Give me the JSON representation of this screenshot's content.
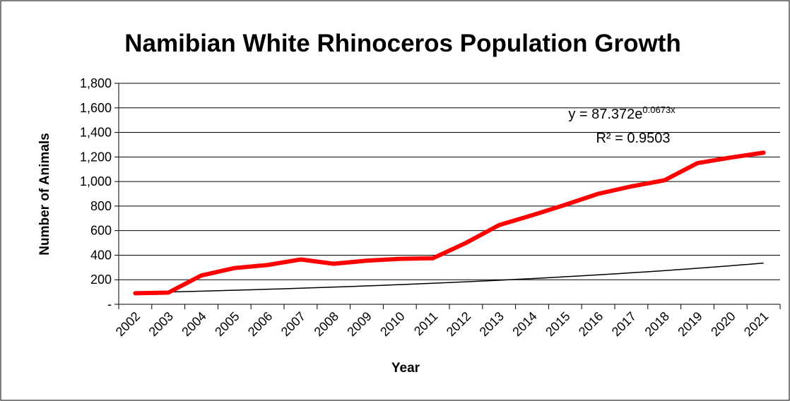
{
  "chart_data": {
    "type": "line",
    "title": "Namibian White Rhinoceros Population Growth",
    "xlabel": "Year",
    "ylabel": "Number of Animals",
    "categories": [
      "2002",
      "2003",
      "2004",
      "2005",
      "2006",
      "2007",
      "2008",
      "2009",
      "2010",
      "2011",
      "2012",
      "2013",
      "2014",
      "2015",
      "2016",
      "2017",
      "2018",
      "2019",
      "2020",
      "2021"
    ],
    "series": [
      {
        "values": [
          90,
          95,
          235,
          295,
          320,
          365,
          330,
          355,
          370,
          375,
          500,
          645,
          725,
          810,
          900,
          960,
          1010,
          1150,
          1195,
          1235
        ],
        "color": "#ff0000"
      }
    ],
    "trendline": {
      "type": "exponential",
      "a": 87.372,
      "b": 0.0673,
      "color": "#000000",
      "equation_prefix": "y = 87.372e",
      "equation_exponent": "0.0673x",
      "r_squared_label": "R² = 0.9503"
    },
    "ylim": [
      0,
      1800
    ],
    "yticks": [
      0,
      200,
      400,
      600,
      800,
      1000,
      1200,
      1400,
      1600,
      1800
    ],
    "ytick_labels": [
      "-",
      "200",
      "400",
      "600",
      "800",
      "1,000",
      "1,200",
      "1,400",
      "1,600",
      "1,800"
    ],
    "grid": true,
    "legend": "none"
  }
}
